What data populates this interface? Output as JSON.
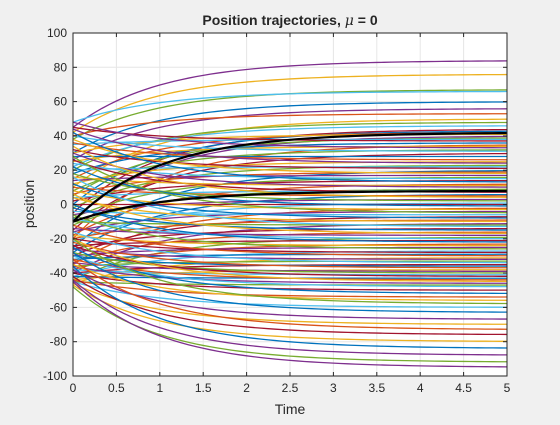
{
  "chart_data": {
    "type": "line",
    "title_main": "Position trajectories, ",
    "title_symbol": "μ",
    "title_tail": " = 0",
    "xlabel": "Time",
    "ylabel": "position",
    "xlim": [
      0,
      5
    ],
    "ylim": [
      -100,
      100
    ],
    "xticks": [
      "0",
      "0.5",
      "1",
      "1.5",
      "2",
      "2.5",
      "3",
      "3.5",
      "4",
      "4.5",
      "5"
    ],
    "yticks": [
      "-100",
      "-80",
      "-60",
      "-40",
      "-20",
      "0",
      "20",
      "40",
      "60",
      "80",
      "100"
    ],
    "grid": true,
    "colors": [
      "#0072bd",
      "#d95319",
      "#edb120",
      "#7e2f8e",
      "#77ac30",
      "#4dbeee",
      "#a2142f"
    ],
    "series_form": "x(t) = xf + (x0 - xf) * exp(-t)",
    "series": [
      {
        "x0": 45,
        "xf": 84,
        "color": "#7e2f8e"
      },
      {
        "x0": 42,
        "xf": 76,
        "color": "#edb120"
      },
      {
        "x0": 38,
        "xf": 67,
        "color": "#77ac30"
      },
      {
        "x0": 48,
        "xf": 66,
        "color": "#4dbeee"
      },
      {
        "x0": 30,
        "xf": 60,
        "color": "#0072bd"
      },
      {
        "x0": 26,
        "xf": 56,
        "color": "#7e2f8e"
      },
      {
        "x0": 40,
        "xf": 53,
        "color": "#d95319"
      },
      {
        "x0": 10,
        "xf": 50,
        "color": "#edb120"
      },
      {
        "x0": 20,
        "xf": 48,
        "color": "#77ac30"
      },
      {
        "x0": 22,
        "xf": 46,
        "color": "#4dbeee"
      },
      {
        "x0": -5,
        "xf": 44,
        "color": "#a2142f"
      },
      {
        "x0": 0,
        "xf": 43,
        "color": "#0072bd"
      },
      {
        "x0": 15,
        "xf": 42,
        "color": "#d95319"
      },
      {
        "x0": 30,
        "xf": 41,
        "color": "#edb120"
      },
      {
        "x0": -10,
        "xf": 40,
        "color": "#7e2f8e"
      },
      {
        "x0": 5,
        "xf": 39,
        "color": "#77ac30"
      },
      {
        "x0": 35,
        "xf": 38,
        "color": "#4dbeee"
      },
      {
        "x0": 45,
        "xf": 37,
        "color": "#a2142f"
      },
      {
        "x0": 18,
        "xf": 36,
        "color": "#0072bd"
      },
      {
        "x0": -20,
        "xf": 35,
        "color": "#d95319"
      },
      {
        "x0": 25,
        "xf": 34,
        "color": "#edb120"
      },
      {
        "x0": 48,
        "xf": 33,
        "color": "#7e2f8e"
      },
      {
        "x0": 8,
        "xf": 32,
        "color": "#77ac30"
      },
      {
        "x0": 40,
        "xf": 31,
        "color": "#4dbeee"
      },
      {
        "x0": -15,
        "xf": 30,
        "color": "#a2142f"
      },
      {
        "x0": 28,
        "xf": 28,
        "color": "#0072bd"
      },
      {
        "x0": 36,
        "xf": 26,
        "color": "#d95319"
      },
      {
        "x0": 12,
        "xf": 25,
        "color": "#edb120"
      },
      {
        "x0": 44,
        "xf": 24,
        "color": "#7e2f8e"
      },
      {
        "x0": -2,
        "xf": 23,
        "color": "#77ac30"
      },
      {
        "x0": 20,
        "xf": 22,
        "color": "#4dbeee"
      },
      {
        "x0": 32,
        "xf": 21,
        "color": "#a2142f"
      },
      {
        "x0": -25,
        "xf": 20,
        "color": "#0072bd"
      },
      {
        "x0": 6,
        "xf": 19,
        "color": "#d95319"
      },
      {
        "x0": 38,
        "xf": 18,
        "color": "#edb120"
      },
      {
        "x0": 14,
        "xf": 17,
        "color": "#7e2f8e"
      },
      {
        "x0": -8,
        "xf": 16,
        "color": "#77ac30"
      },
      {
        "x0": 24,
        "xf": 15,
        "color": "#4dbeee"
      },
      {
        "x0": 2,
        "xf": 14,
        "color": "#a2142f"
      },
      {
        "x0": 42,
        "xf": 13,
        "color": "#0072bd"
      },
      {
        "x0": -18,
        "xf": 12,
        "color": "#d95319"
      },
      {
        "x0": 16,
        "xf": 11,
        "color": "#edb120"
      },
      {
        "x0": 30,
        "xf": 10,
        "color": "#7e2f8e"
      },
      {
        "x0": -12,
        "xf": 9,
        "color": "#77ac30"
      },
      {
        "x0": 4,
        "xf": 8,
        "color": "#4dbeee"
      },
      {
        "x0": 26,
        "xf": 7,
        "color": "#a2142f"
      },
      {
        "x0": -28,
        "xf": 6,
        "color": "#0072bd"
      },
      {
        "x0": 10,
        "xf": 5,
        "color": "#d95319"
      },
      {
        "x0": 34,
        "xf": 4,
        "color": "#edb120"
      },
      {
        "x0": -6,
        "xf": 3,
        "color": "#7e2f8e"
      },
      {
        "x0": 18,
        "xf": 2,
        "color": "#77ac30"
      },
      {
        "x0": -22,
        "xf": 1,
        "color": "#4dbeee"
      },
      {
        "x0": 0,
        "xf": 0,
        "color": "#a2142f"
      },
      {
        "x0": 22,
        "xf": -1,
        "color": "#0072bd"
      },
      {
        "x0": -35,
        "xf": -2,
        "color": "#d95319"
      },
      {
        "x0": 8,
        "xf": -3,
        "color": "#edb120"
      },
      {
        "x0": -16,
        "xf": -4,
        "color": "#7e2f8e"
      },
      {
        "x0": 28,
        "xf": -5,
        "color": "#77ac30"
      },
      {
        "x0": -4,
        "xf": -6,
        "color": "#4dbeee"
      },
      {
        "x0": -30,
        "xf": -7,
        "color": "#a2142f"
      },
      {
        "x0": 12,
        "xf": -8,
        "color": "#0072bd"
      },
      {
        "x0": -20,
        "xf": -9,
        "color": "#d95319"
      },
      {
        "x0": 4,
        "xf": -10,
        "color": "#edb120"
      },
      {
        "x0": -40,
        "xf": -11,
        "color": "#7e2f8e"
      },
      {
        "x0": -10,
        "xf": -12,
        "color": "#77ac30"
      },
      {
        "x0": 16,
        "xf": -13,
        "color": "#4dbeee"
      },
      {
        "x0": -26,
        "xf": -14,
        "color": "#a2142f"
      },
      {
        "x0": -2,
        "xf": -15,
        "color": "#0072bd"
      },
      {
        "x0": -34,
        "xf": -16,
        "color": "#d95319"
      },
      {
        "x0": 6,
        "xf": -17,
        "color": "#edb120"
      },
      {
        "x0": -14,
        "xf": -18,
        "color": "#7e2f8e"
      },
      {
        "x0": -44,
        "xf": -19,
        "color": "#77ac30"
      },
      {
        "x0": -8,
        "xf": -20,
        "color": "#4dbeee"
      },
      {
        "x0": -24,
        "xf": -21,
        "color": "#a2142f"
      },
      {
        "x0": 0,
        "xf": -22,
        "color": "#0072bd"
      },
      {
        "x0": -38,
        "xf": -23,
        "color": "#d95319"
      },
      {
        "x0": -18,
        "xf": -24,
        "color": "#edb120"
      },
      {
        "x0": -30,
        "xf": -25,
        "color": "#7e2f8e"
      },
      {
        "x0": -6,
        "xf": -26,
        "color": "#77ac30"
      },
      {
        "x0": -42,
        "xf": -27,
        "color": "#4dbeee"
      },
      {
        "x0": -20,
        "xf": -28,
        "color": "#a2142f"
      },
      {
        "x0": -32,
        "xf": -29,
        "color": "#0072bd"
      },
      {
        "x0": -12,
        "xf": -30,
        "color": "#d95319"
      },
      {
        "x0": -46,
        "xf": -31,
        "color": "#edb120"
      },
      {
        "x0": -26,
        "xf": -32,
        "color": "#7e2f8e"
      },
      {
        "x0": -36,
        "xf": -33,
        "color": "#77ac30"
      },
      {
        "x0": -16,
        "xf": -34,
        "color": "#4dbeee"
      },
      {
        "x0": -40,
        "xf": -35,
        "color": "#a2142f"
      },
      {
        "x0": -30,
        "xf": -36,
        "color": "#0072bd"
      },
      {
        "x0": -22,
        "xf": -37,
        "color": "#d95319"
      },
      {
        "x0": -44,
        "xf": -38,
        "color": "#edb120"
      },
      {
        "x0": -34,
        "xf": -39,
        "color": "#7e2f8e"
      },
      {
        "x0": -28,
        "xf": -40,
        "color": "#77ac30"
      },
      {
        "x0": -38,
        "xf": -41,
        "color": "#4dbeee"
      },
      {
        "x0": -24,
        "xf": -42,
        "color": "#a2142f"
      },
      {
        "x0": -42,
        "xf": -43,
        "color": "#0072bd"
      },
      {
        "x0": -32,
        "xf": -44,
        "color": "#d95319"
      },
      {
        "x0": -20,
        "xf": -45,
        "color": "#edb120"
      },
      {
        "x0": -36,
        "xf": -46,
        "color": "#7e2f8e"
      },
      {
        "x0": -45,
        "xf": -47,
        "color": "#77ac30"
      },
      {
        "x0": -30,
        "xf": -48,
        "color": "#4dbeee"
      },
      {
        "x0": -40,
        "xf": -50,
        "color": "#a2142f"
      },
      {
        "x0": -25,
        "xf": -52,
        "color": "#0072bd"
      },
      {
        "x0": -44,
        "xf": -54,
        "color": "#d95319"
      },
      {
        "x0": -35,
        "xf": -56,
        "color": "#edb120"
      },
      {
        "x0": -20,
        "xf": -58,
        "color": "#77ac30"
      },
      {
        "x0": -45,
        "xf": -60,
        "color": "#4dbeee"
      },
      {
        "x0": -28,
        "xf": -63,
        "color": "#0072bd"
      },
      {
        "x0": -38,
        "xf": -67,
        "color": "#7e2f8e"
      },
      {
        "x0": -46,
        "xf": -70,
        "color": "#edb120"
      },
      {
        "x0": -32,
        "xf": -73,
        "color": "#d95319"
      },
      {
        "x0": -42,
        "xf": -76,
        "color": "#a2142f"
      },
      {
        "x0": -47,
        "xf": -80,
        "color": "#edb120"
      },
      {
        "x0": -36,
        "xf": -84,
        "color": "#0072bd"
      },
      {
        "x0": -44,
        "xf": -88,
        "color": "#7e2f8e"
      },
      {
        "x0": -48,
        "xf": -92,
        "color": "#77ac30"
      },
      {
        "x0": -45,
        "xf": -95,
        "color": "#7e2f8e"
      }
    ],
    "mean_series": [
      {
        "x0": -10,
        "xf": 42,
        "color": "#000000"
      },
      {
        "x0": -10,
        "xf": 8,
        "color": "#000000"
      }
    ]
  }
}
